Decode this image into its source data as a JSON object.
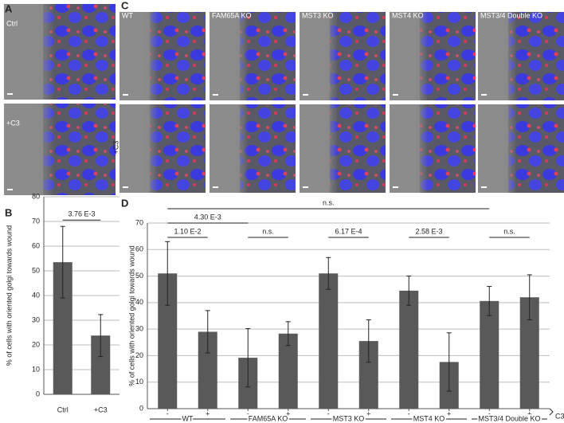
{
  "panel_labels": [
    "A",
    "B",
    "C",
    "D"
  ],
  "panel_a": {
    "rows": [
      "Ctrl",
      "+C3"
    ]
  },
  "panel_c": {
    "columns": [
      "WT",
      "FAM65A KO",
      "MST3 KO",
      "MST4 KO",
      "MST3/4 Double KO"
    ],
    "row_label": "+C3"
  },
  "chart_data": [
    {
      "type": "bar",
      "ylabel": "% of cells with oriented golgi towards wound",
      "categories": [
        "Ctrl",
        "+C3"
      ],
      "values": [
        53.5,
        23.8
      ],
      "errors": [
        14.5,
        8.5
      ],
      "color": "#595959",
      "ylim": [
        0,
        80
      ],
      "yticks": [
        0,
        10,
        20,
        30,
        40,
        50,
        60,
        70,
        80
      ],
      "grid": true,
      "annotations": [
        {
          "text": "3.76 E-3",
          "bars": [
            0,
            1
          ]
        }
      ]
    },
    {
      "type": "bar",
      "ylabel": "% of cells with oriented golgi towards wound",
      "xlabel": "C3",
      "categories": [
        "-",
        "+",
        "-",
        "+",
        "-",
        "+",
        "-",
        "+",
        "-",
        "+"
      ],
      "groups": [
        "WT",
        "FAM65A KO",
        "MST3 KO",
        "MST4 KO",
        "MST3/4 Double KO"
      ],
      "values": [
        51,
        29,
        19.2,
        28.3,
        51,
        25.5,
        44.5,
        17.6,
        40.6,
        42
      ],
      "errors": [
        12,
        8,
        11,
        4.5,
        6,
        8,
        5.5,
        11,
        5.5,
        8.5
      ],
      "color": "#595959",
      "ylim": [
        0,
        70
      ],
      "yticks": [
        0,
        10,
        20,
        30,
        40,
        50,
        60,
        70
      ],
      "grid": true,
      "annotations": [
        {
          "text": "n.s.",
          "bars": [
            0,
            8
          ]
        },
        {
          "text": "4.30 E-3",
          "bars": [
            0,
            2
          ]
        },
        {
          "text": "1.10 E-2",
          "bars": [
            0,
            1
          ]
        },
        {
          "text": "6.17 E-4",
          "bars": [
            4,
            5
          ]
        },
        {
          "text": "n.s.",
          "bars": [
            2,
            3
          ]
        },
        {
          "text": "2.58 E-3",
          "bars": [
            6,
            7
          ]
        },
        {
          "text": "n.s.",
          "bars": [
            8,
            9
          ]
        }
      ]
    }
  ]
}
